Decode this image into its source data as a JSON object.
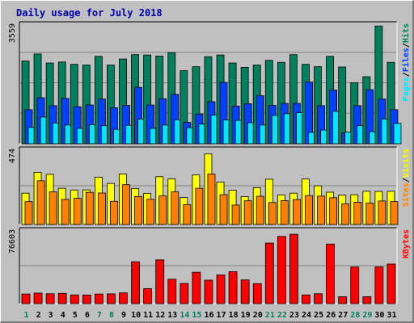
{
  "chart_data": {
    "type": "bar",
    "title": "Daily usage for July 2018",
    "categories": [
      "1",
      "2",
      "3",
      "4",
      "5",
      "6",
      "7",
      "8",
      "9",
      "10",
      "11",
      "12",
      "13",
      "14",
      "15",
      "16",
      "17",
      "18",
      "19",
      "20",
      "21",
      "22",
      "23",
      "24",
      "25",
      "26",
      "27",
      "28",
      "29",
      "30",
      "31"
    ],
    "weekend_days": [
      "1",
      "7",
      "8",
      "14",
      "15",
      "21",
      "22",
      "28",
      "29"
    ],
    "panels": [
      {
        "name": "hits-files-pages",
        "ymax_label": "3559",
        "ymax": 3559,
        "axis_label_parts": [
          "Pages",
          "/",
          "Files",
          "/",
          "Hits"
        ],
        "series": [
          {
            "name": "Hits",
            "color": "#00805c",
            "values": [
              2480,
              2690,
              2420,
              2450,
              2380,
              2360,
              2620,
              2360,
              2540,
              2670,
              2660,
              2630,
              2730,
              2190,
              2310,
              2610,
              2660,
              2420,
              2290,
              2360,
              2500,
              2440,
              2670,
              2380,
              2310,
              2620,
              2300,
              1830,
              2010,
              3530,
              2440
            ]
          },
          {
            "name": "Files",
            "color": "#0040ff",
            "values": [
              1020,
              1380,
              1140,
              1360,
              1110,
              1160,
              1340,
              1080,
              1150,
              1690,
              1160,
              1350,
              1480,
              640,
              890,
              1260,
              1840,
              1130,
              1200,
              1440,
              1150,
              1210,
              1210,
              1850,
              1140,
              1610,
              330,
              1140,
              1620,
              1340,
              1020
            ]
          },
          {
            "name": "Pages",
            "color": "#00e6ff",
            "values": [
              490,
              800,
              620,
              560,
              460,
              570,
              540,
              430,
              550,
              740,
              460,
              560,
              720,
              480,
              590,
              860,
              710,
              700,
              630,
              560,
              850,
              900,
              930,
              340,
              410,
              970,
              350,
              540,
              360,
              740,
              610
            ]
          }
        ]
      },
      {
        "name": "visits-sites",
        "ymax_label": "474",
        "ymax": 474,
        "axis_label_parts": [
          "Sites",
          "/",
          "Visits"
        ],
        "series": [
          {
            "name": "Visits",
            "color": "#ffff00",
            "values": [
              200,
              333,
              320,
              231,
              220,
              221,
              302,
              262,
              322,
              230,
              199,
              305,
              291,
              172,
              316,
              450,
              271,
              219,
              178,
              235,
              289,
              189,
              200,
              290,
              247,
              206,
              188,
              190,
              212,
              211,
              212
            ]
          },
          {
            "name": "Sites",
            "color": "#ff8000",
            "values": [
              146,
              279,
              208,
              160,
              167,
              205,
              201,
              148,
              254,
              178,
              161,
              182,
              208,
              127,
              231,
              322,
              190,
              124,
              151,
              180,
              140,
              152,
              159,
              184,
              181,
              171,
              131,
              142,
              137,
              150,
              146
            ]
          }
        ]
      },
      {
        "name": "kbytes",
        "ymax_label": "76603",
        "ymax": 76603,
        "axis_label_parts": [
          "KBytes"
        ],
        "series": [
          {
            "name": "KBytes",
            "color": "#ff0000",
            "values": [
              10100,
              11100,
              10400,
              10800,
              9200,
              9100,
              10100,
              10300,
              11300,
              44100,
              15800,
              46100,
              25700,
              21300,
              33100,
              24700,
              30300,
              33700,
              25000,
              21100,
              63800,
              70800,
              73100,
              9200,
              10400,
              62800,
              7300,
              38600,
              7300,
              38700,
              41700
            ]
          }
        ]
      }
    ]
  }
}
